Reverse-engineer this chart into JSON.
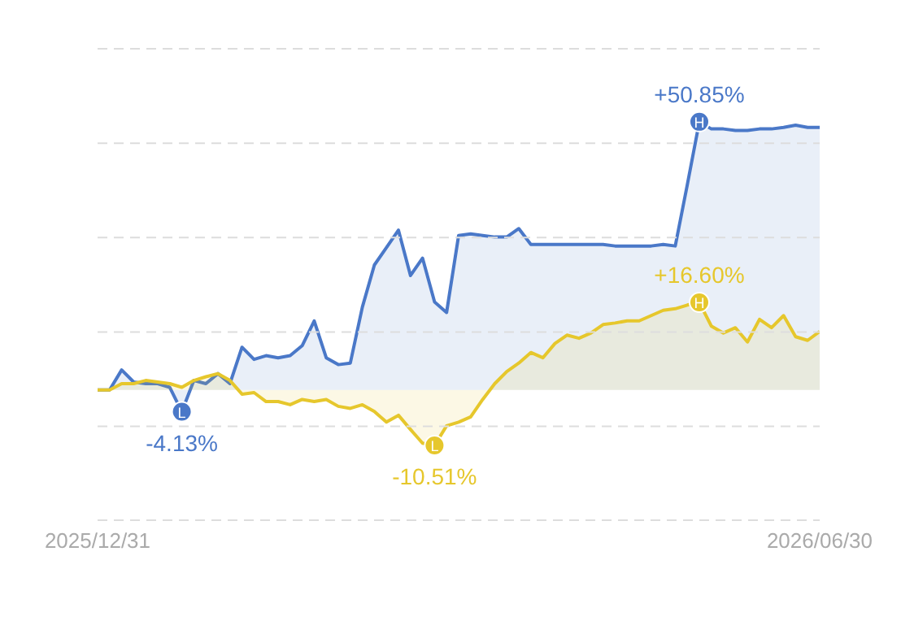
{
  "chart_data": {
    "type": "area",
    "categories": [
      "2025/12/31",
      null,
      null,
      null,
      null,
      null,
      null,
      null,
      null,
      null,
      null,
      null,
      null,
      null,
      null,
      null,
      null,
      null,
      null,
      null,
      null,
      null,
      null,
      null,
      null,
      null,
      null,
      null,
      null,
      null,
      null,
      null,
      null,
      null,
      null,
      null,
      null,
      null,
      null,
      null,
      null,
      null,
      null,
      null,
      null,
      null,
      null,
      null,
      null,
      null,
      null,
      null,
      null,
      null,
      null,
      null,
      null,
      null,
      null,
      null,
      "2026/06/30"
    ],
    "series": [
      {
        "color": "#4a78c8",
        "values": [
          0,
          0,
          3.8,
          1.5,
          1.2,
          1.2,
          0.5,
          -4.13,
          1.8,
          1.2,
          3.1,
          1.2,
          8.1,
          5.8,
          6.5,
          6.1,
          6.5,
          8.4,
          13.1,
          6.1,
          4.8,
          5.1,
          15.7,
          23.7,
          27.0,
          30.3,
          21.7,
          25.0,
          16.7,
          14.7,
          29.3,
          29.6,
          29.3,
          29.0,
          29.0,
          30.6,
          27.6,
          27.6,
          27.6,
          27.6,
          27.6,
          27.6,
          27.6,
          27.3,
          27.3,
          27.3,
          27.3,
          27.6,
          27.3,
          38.9,
          50.85,
          49.5,
          49.5,
          49.2,
          49.2,
          49.5,
          49.5,
          49.8,
          50.2,
          49.8,
          49.8
        ],
        "value_labels": [
          null,
          null,
          null,
          null,
          null,
          null,
          null,
          "-4.13%",
          null,
          null,
          null,
          null,
          null,
          null,
          null,
          null,
          null,
          null,
          null,
          null,
          null,
          null,
          null,
          null,
          null,
          null,
          null,
          null,
          null,
          null,
          null,
          null,
          null,
          null,
          null,
          null,
          null,
          null,
          null,
          null,
          null,
          null,
          null,
          null,
          null,
          null,
          null,
          null,
          null,
          null,
          "+50.85%",
          null,
          null,
          null,
          null,
          null,
          null,
          null,
          null,
          null,
          null
        ]
      },
      {
        "color": "#e6c72c",
        "values": [
          0,
          0,
          1.2,
          1.2,
          1.8,
          1.5,
          1.2,
          0.5,
          1.8,
          2.5,
          3.1,
          1.8,
          -0.8,
          -0.5,
          -2.2,
          -2.2,
          -2.8,
          -1.8,
          -2.2,
          -1.8,
          -3.1,
          -3.5,
          -2.8,
          -4.1,
          -6.1,
          -4.8,
          -7.5,
          -10.1,
          -10.51,
          -6.8,
          -6.1,
          -5.1,
          -1.8,
          1.2,
          3.5,
          5.1,
          7.1,
          6.1,
          8.8,
          10.4,
          9.8,
          10.8,
          12.4,
          12.7,
          13.1,
          13.1,
          14.1,
          15.1,
          15.4,
          16.1,
          16.6,
          12.1,
          10.8,
          11.8,
          9.1,
          13.4,
          11.8,
          14.1,
          10.1,
          9.4,
          11.1
        ],
        "value_labels": [
          null,
          null,
          null,
          null,
          null,
          null,
          null,
          null,
          null,
          null,
          null,
          null,
          null,
          null,
          null,
          null,
          null,
          null,
          null,
          null,
          null,
          null,
          null,
          null,
          null,
          null,
          null,
          null,
          "-10.51%",
          null,
          null,
          null,
          null,
          null,
          null,
          null,
          null,
          null,
          null,
          null,
          null,
          null,
          null,
          null,
          null,
          null,
          null,
          null,
          null,
          null,
          "+16.60%",
          null,
          null,
          null,
          null,
          null,
          null,
          null,
          null,
          null,
          null
        ]
      }
    ],
    "annotations": [
      {
        "text": "L",
        "y": -4.13
      },
      {
        "text": "H",
        "y": 50.85
      },
      {
        "text": "L",
        "y": -10.51
      },
      {
        "text": "H",
        "y": 16.6
      }
    ],
    "ylim": [
      -24.7,
      64.7
    ],
    "yticks": [
      {
        "value": -24.7,
        "label": null
      },
      {
        "value": -6.9,
        "label": null
      },
      {
        "value": 11.0,
        "label": null
      },
      {
        "value": 28.9,
        "label": null
      },
      {
        "value": 46.8,
        "label": null
      },
      {
        "value": 64.7,
        "label": null
      }
    ],
    "grid": "y",
    "tick_labels": "x",
    "marker": "none",
    "line_style": "solid"
  }
}
